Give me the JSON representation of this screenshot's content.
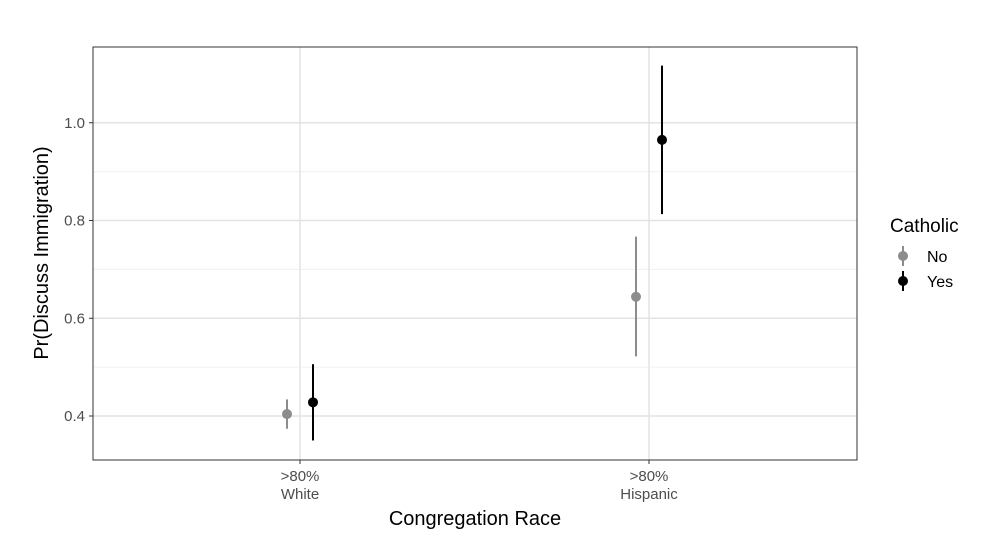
{
  "chart_data": {
    "type": "scatter",
    "title": "",
    "xlabel": "Congregation Race",
    "ylabel": "Pr(Discuss Immigration)",
    "categories": [
      [
        ">80%",
        "White"
      ],
      [
        ">80%",
        "Hispanic"
      ]
    ],
    "y_ticks": [
      0.4,
      0.6,
      0.8,
      1.0
    ],
    "y_tick_labels": [
      "0.4",
      "0.6",
      "0.8",
      "1.0"
    ],
    "ylim": [
      0.31,
      1.155
    ],
    "grid": true,
    "legend": {
      "title": "Catholic",
      "placement": "right",
      "entries": [
        "No",
        "Yes"
      ]
    },
    "series": [
      {
        "name": "No",
        "color": "#8c8c8c",
        "points": [
          {
            "category": 0,
            "y": 0.404,
            "lower": 0.374,
            "upper": 0.434
          },
          {
            "category": 1,
            "y": 0.644,
            "lower": 0.522,
            "upper": 0.767
          }
        ]
      },
      {
        "name": "Yes",
        "color": "#000000",
        "points": [
          {
            "category": 0,
            "y": 0.428,
            "lower": 0.35,
            "upper": 0.506
          },
          {
            "category": 1,
            "y": 0.965,
            "lower": 0.813,
            "upper": 1.117
          }
        ]
      }
    ]
  }
}
